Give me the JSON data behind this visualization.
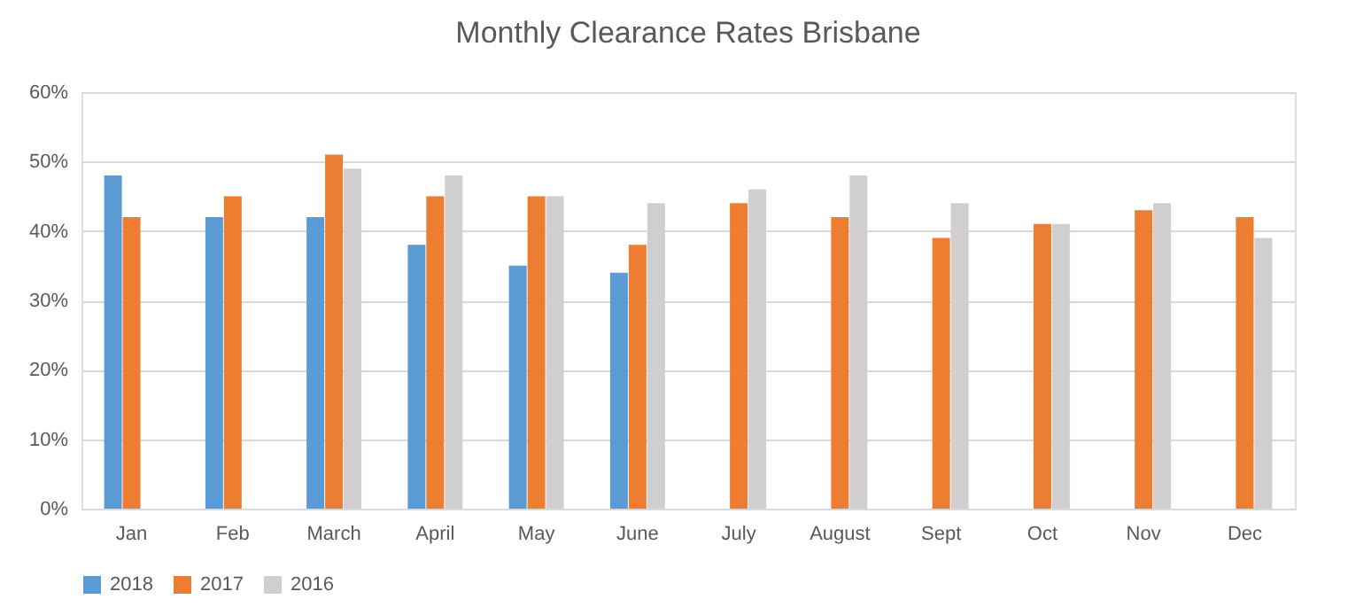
{
  "chart_data": {
    "type": "bar",
    "title": "Monthly Clearance Rates Brisbane",
    "categories": [
      "Jan",
      "Feb",
      "March",
      "April",
      "May",
      "June",
      "July",
      "August",
      "Sept",
      "Oct",
      "Nov",
      "Dec"
    ],
    "series": [
      {
        "name": "2018",
        "color": "#5b9bd5",
        "values": [
          48,
          42,
          42,
          38,
          35,
          34,
          null,
          null,
          null,
          null,
          null,
          null
        ]
      },
      {
        "name": "2017",
        "color": "#ed7d31",
        "values": [
          42,
          45,
          51,
          45,
          45,
          38,
          44,
          42,
          39,
          41,
          43,
          42
        ]
      },
      {
        "name": "2016",
        "color": "#d0cece",
        "values": [
          null,
          null,
          49,
          48,
          45,
          44,
          46,
          48,
          44,
          41,
          44,
          39
        ]
      }
    ],
    "ylim": [
      0,
      60
    ],
    "yticks": [
      {
        "value": 0,
        "label": "0%"
      },
      {
        "value": 10,
        "label": "10%"
      },
      {
        "value": 20,
        "label": "20%"
      },
      {
        "value": 30,
        "label": "30%"
      },
      {
        "value": 40,
        "label": "40%"
      },
      {
        "value": 50,
        "label": "50%"
      },
      {
        "value": 60,
        "label": "60%"
      }
    ],
    "grid": "y",
    "legend": "bottom"
  }
}
